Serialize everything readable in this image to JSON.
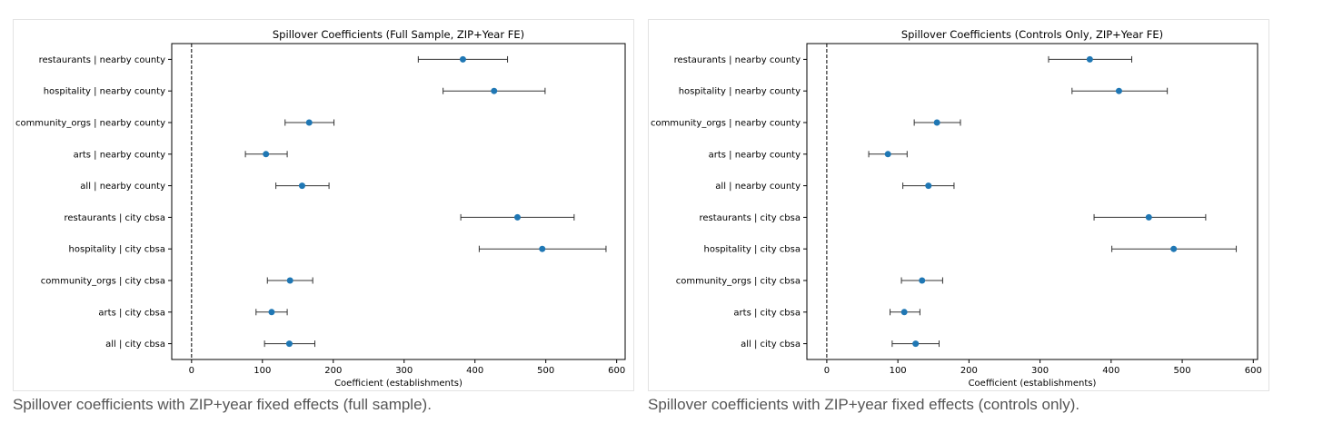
{
  "chart_data": [
    {
      "type": "scatter",
      "title": "Spillover Coefficients (Full Sample, ZIP+Year FE)",
      "xlabel": "Coefficient (establishments)",
      "ylabel": "",
      "xlim": [
        -28,
        612
      ],
      "xticks": [
        0,
        100,
        200,
        300,
        400,
        500,
        600
      ],
      "reference_line_x": 0,
      "categories": [
        "restaurants | nearby county",
        "hospitality | nearby county",
        "community_orgs | nearby county",
        "arts | nearby county",
        "all | nearby county",
        "restaurants | city cbsa",
        "hospitality | city cbsa",
        "community_orgs | city cbsa",
        "arts | city cbsa",
        "all | city cbsa"
      ],
      "series": [
        {
          "values": [
            383,
            427,
            166,
            105,
            156,
            460,
            495,
            139,
            113,
            138
          ],
          "lower": [
            320,
            355,
            132,
            76,
            119,
            380,
            406,
            107,
            91,
            103
          ],
          "upper": [
            446,
            499,
            201,
            135,
            194,
            540,
            585,
            171,
            135,
            174
          ]
        }
      ],
      "color": "#1f77b4",
      "caption": "Spillover coefficients with ZIP+year fixed effects (full sample)."
    },
    {
      "type": "scatter",
      "title": "Spillover Coefficients (Controls Only, ZIP+Year FE)",
      "xlabel": "Coefficient (establishments)",
      "ylabel": "",
      "xlim": [
        -28,
        606
      ],
      "xticks": [
        0,
        100,
        200,
        300,
        400,
        500,
        600
      ],
      "reference_line_x": 0,
      "categories": [
        "restaurants | nearby county",
        "hospitality | nearby county",
        "community_orgs | nearby county",
        "arts | nearby county",
        "all | nearby county",
        "restaurants | city cbsa",
        "hospitality | city cbsa",
        "community_orgs | city cbsa",
        "arts | city cbsa",
        "all | city cbsa"
      ],
      "series": [
        {
          "values": [
            370,
            411,
            155,
            86,
            143,
            453,
            488,
            134,
            109,
            125
          ],
          "lower": [
            312,
            345,
            123,
            59,
            107,
            376,
            401,
            105,
            89,
            92
          ],
          "upper": [
            429,
            479,
            188,
            113,
            179,
            533,
            576,
            163,
            131,
            158
          ]
        }
      ],
      "color": "#1f77b4",
      "caption": "Spillover coefficients with ZIP+year fixed effects (controls only)."
    }
  ]
}
